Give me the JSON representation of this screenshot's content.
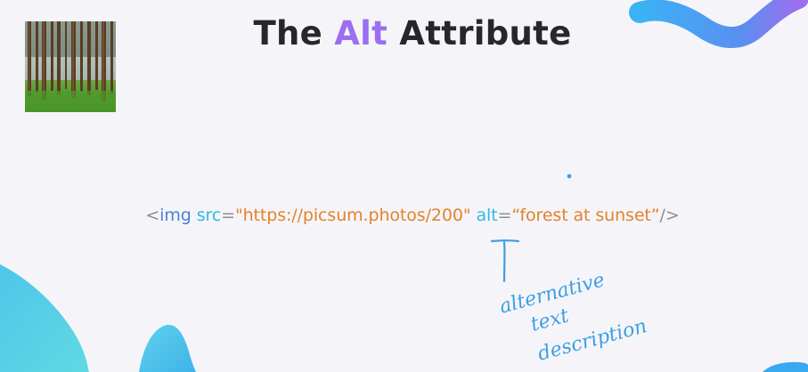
{
  "title": {
    "prefix": "The ",
    "accent": "Alt",
    "suffix": " Attribute"
  },
  "code": {
    "open": "<",
    "tag": "img",
    "space1": " ",
    "attr_src": "src",
    "eq1": "=",
    "src_value": "\"https://picsum.photos/200\"",
    "space2": " ",
    "attr_alt": "alt",
    "eq2": "=",
    "alt_value": "“forest at sunset”",
    "close": "/>"
  },
  "annotation": {
    "line1": "alternative",
    "line2": "text",
    "line3": "description"
  },
  "colors": {
    "background": "#f5f5f9",
    "title_text": "#26262b",
    "title_accent": "#9b6ef2",
    "code_punctuation": "#8b8c96",
    "code_tag": "#4d7fd7",
    "code_attribute": "#2fb8e5",
    "code_string": "#e4822c",
    "handwriting_ink": "#3d9fe3"
  },
  "icons": {
    "thumbnail": "forest-image"
  }
}
